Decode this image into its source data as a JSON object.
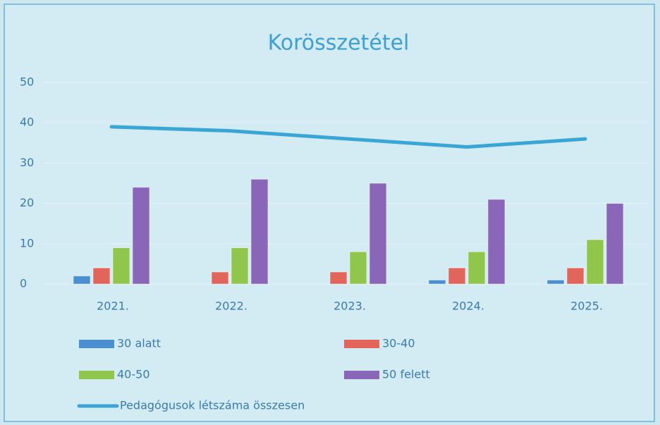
{
  "chart_data": {
    "type": "bar",
    "title": "Korösszetétel",
    "categories": [
      "2021.",
      "2022.",
      "2023.",
      "2024.",
      "2025."
    ],
    "series": [
      {
        "name": "30 alatt",
        "color": "#4a8fd2",
        "values": [
          2,
          0,
          0,
          1,
          1
        ]
      },
      {
        "name": "30-40",
        "color": "#e2655c",
        "values": [
          4,
          3,
          3,
          4,
          4
        ]
      },
      {
        "name": "40-50",
        "color": "#90c64c",
        "values": [
          9,
          9,
          8,
          8,
          11
        ]
      },
      {
        "name": "50 felett",
        "color": "#8a66b9",
        "values": [
          24,
          26,
          25,
          21,
          20
        ]
      },
      {
        "name": "Pedagógusok létszáma összesen",
        "color": "#3aa6d6",
        "type": "line",
        "values": [
          39,
          38,
          36,
          34,
          36
        ]
      }
    ],
    "ylim": [
      0,
      50
    ],
    "yticks": [
      0,
      10,
      20,
      30,
      40,
      50
    ],
    "grid": true
  }
}
